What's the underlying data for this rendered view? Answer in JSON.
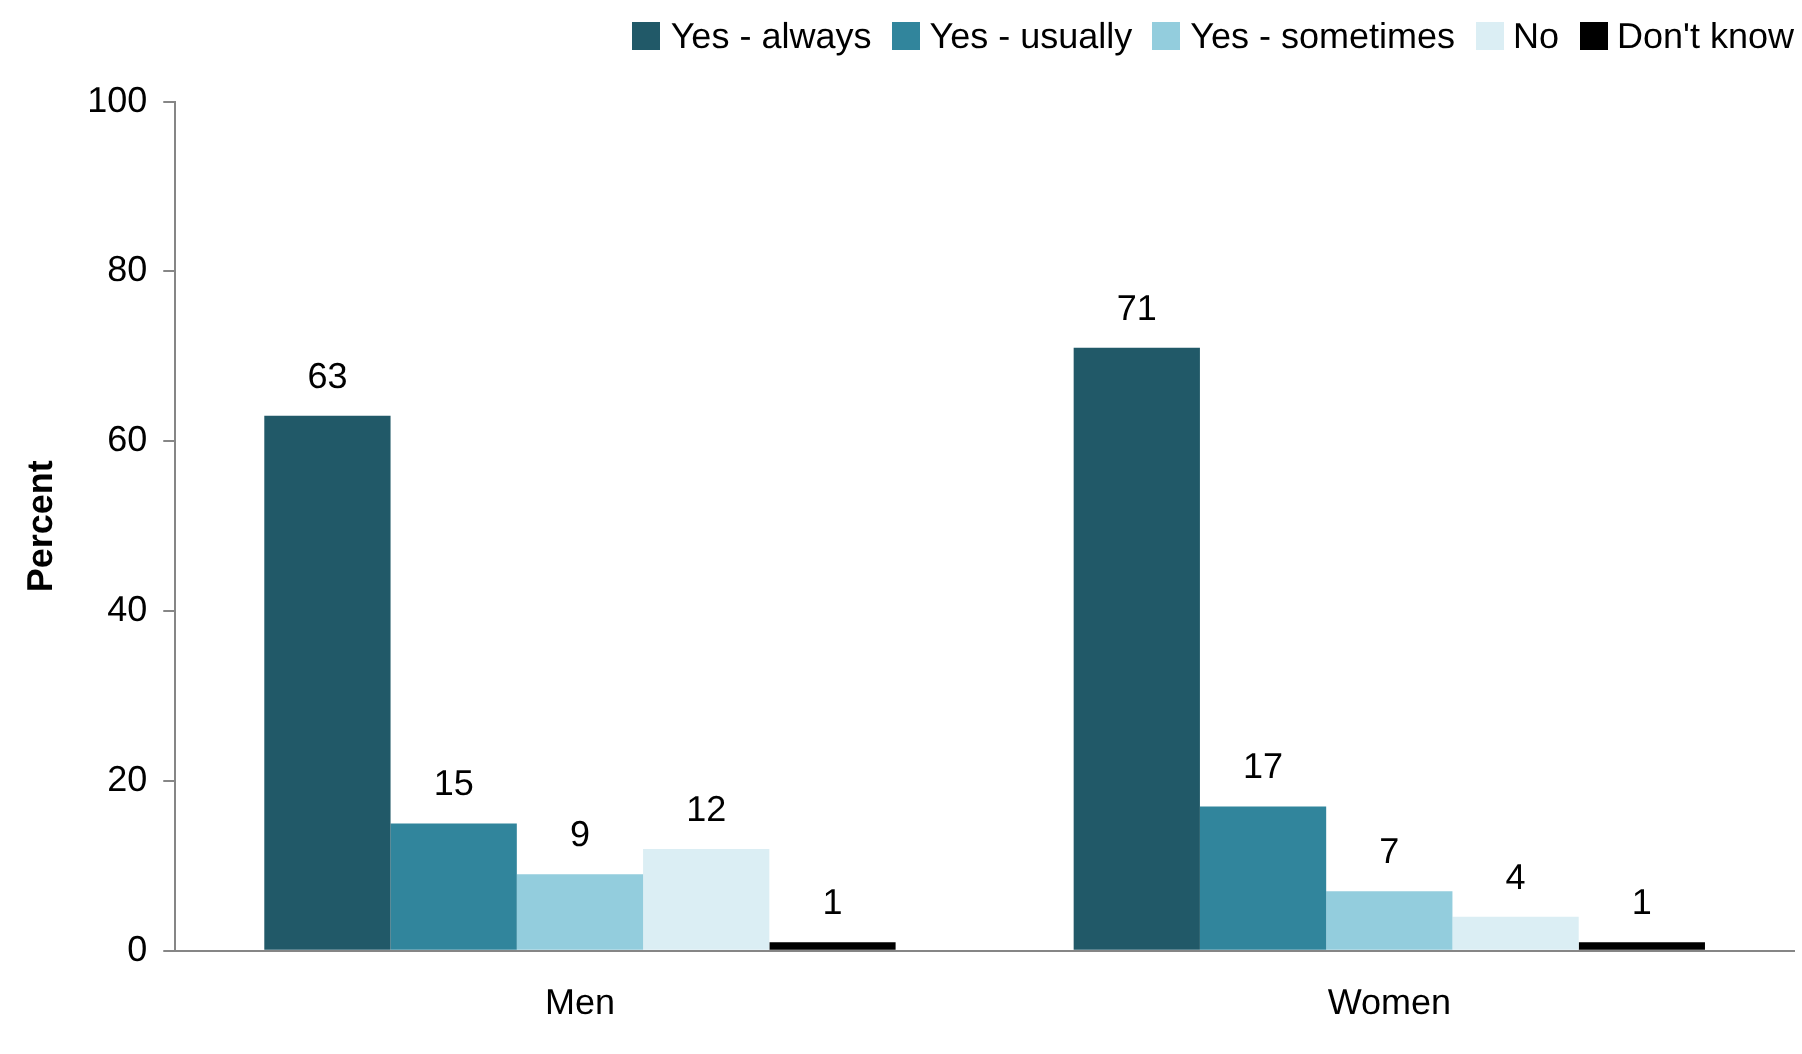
{
  "chart_data": {
    "type": "bar",
    "ylabel": "Percent",
    "categories": [
      "Men",
      "Women"
    ],
    "series": [
      {
        "name": "Yes - always",
        "color": "#215968",
        "values": [
          63,
          71
        ]
      },
      {
        "name": "Yes - usually",
        "color": "#31859c",
        "values": [
          15,
          17
        ]
      },
      {
        "name": "Yes - sometimes",
        "color": "#93cddd",
        "values": [
          9,
          7
        ]
      },
      {
        "name": "No",
        "color": "#dbeef4",
        "values": [
          12,
          4
        ]
      },
      {
        "name": "Don't know",
        "color": "#000000",
        "values": [
          1,
          1
        ]
      }
    ],
    "ylim": [
      0,
      100
    ],
    "yticks": [
      0,
      20,
      40,
      60,
      80,
      100
    ],
    "grid": false,
    "legend": "top right",
    "data_labels": true
  }
}
